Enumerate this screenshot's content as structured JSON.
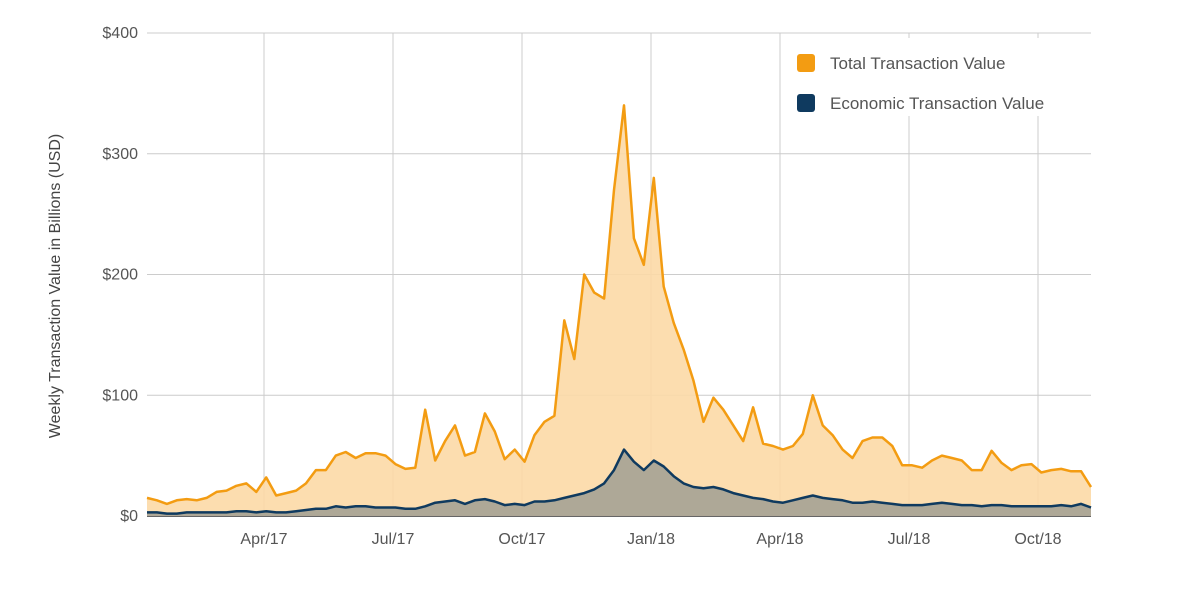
{
  "chart_data": {
    "type": "area",
    "ylabel": "Weekly Transaction Value in Billions (USD)",
    "xlabel": "",
    "ylim": [
      0,
      400
    ],
    "y_ticks": [
      "$0",
      "$100",
      "$200",
      "$300",
      "$400"
    ],
    "x_ticks": [
      "Apr/17",
      "Jul/17",
      "Oct/17",
      "Jan/18",
      "Apr/18",
      "Jul/18",
      "Oct/18"
    ],
    "grid": true,
    "legend_position": "top-right",
    "series": [
      {
        "name": "Total Transaction Value",
        "color": "#f39c12",
        "fill": "#fcd9a6",
        "values": [
          15,
          13,
          10,
          13,
          14,
          13,
          15,
          20,
          21,
          25,
          27,
          20,
          32,
          17,
          19,
          21,
          27,
          38,
          38,
          50,
          53,
          48,
          52,
          52,
          50,
          43,
          39,
          40,
          88,
          46,
          62,
          75,
          50,
          53,
          85,
          70,
          47,
          55,
          45,
          67,
          78,
          83,
          162,
          130,
          200,
          185,
          180,
          270,
          340,
          230,
          208,
          280,
          190,
          160,
          138,
          112,
          78,
          98,
          88,
          75,
          62,
          90,
          60,
          58,
          55,
          58,
          68,
          100,
          75,
          67,
          55,
          48,
          62,
          65,
          65,
          58,
          42,
          42,
          40,
          46,
          50,
          48,
          46,
          38,
          38,
          54,
          44,
          38,
          42,
          43,
          36,
          38,
          39,
          37,
          37,
          24
        ]
      },
      {
        "name": "Economic Transaction Value",
        "color": "#0f3a5f",
        "fill": "#aaa496",
        "values": [
          3,
          3,
          2,
          2,
          3,
          3,
          3,
          3,
          3,
          4,
          4,
          3,
          4,
          3,
          3,
          4,
          5,
          6,
          6,
          8,
          7,
          8,
          8,
          7,
          7,
          7,
          6,
          6,
          8,
          11,
          12,
          13,
          10,
          13,
          14,
          12,
          9,
          10,
          9,
          12,
          12,
          13,
          15,
          17,
          19,
          22,
          27,
          38,
          55,
          45,
          38,
          46,
          41,
          33,
          27,
          24,
          23,
          24,
          22,
          19,
          17,
          15,
          14,
          12,
          11,
          13,
          15,
          17,
          15,
          14,
          13,
          11,
          11,
          12,
          11,
          10,
          9,
          9,
          9,
          10,
          11,
          10,
          9,
          9,
          8,
          9,
          9,
          8,
          8,
          8,
          8,
          8,
          9,
          8,
          10,
          7
        ]
      }
    ]
  }
}
